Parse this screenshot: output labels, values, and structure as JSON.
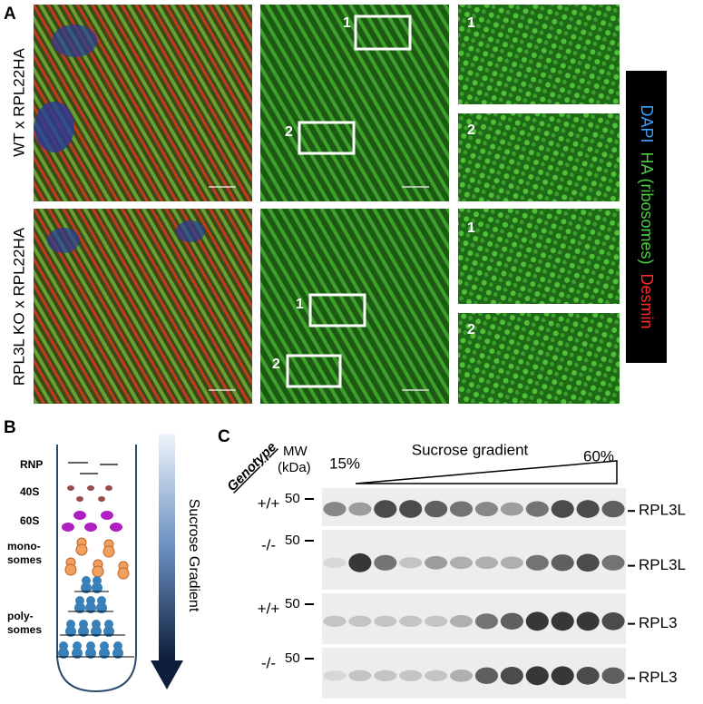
{
  "panel_a": {
    "label": "A",
    "rows": [
      {
        "label": "WT x RPL22HA",
        "box_labels": [
          "1",
          "2"
        ],
        "inset_labels": [
          "1",
          "2"
        ]
      },
      {
        "label": "RPL3L KO x RPL22HA",
        "box_labels": [
          "1",
          "2"
        ],
        "inset_labels": [
          "1",
          "2"
        ]
      }
    ],
    "legend": [
      "DAPI",
      "HA (ribosomes)",
      "Desmin"
    ]
  },
  "panel_b": {
    "label": "B",
    "fractions": [
      [
        "RNP"
      ],
      [
        "40S"
      ],
      [
        "60S"
      ],
      [
        "mono-",
        "somes"
      ],
      [
        "poly-",
        "somes"
      ]
    ],
    "gradient_label": "Sucrose Gradient"
  },
  "panel_c": {
    "label": "C",
    "genotype_header": "Genotype",
    "mw_header": [
      "MW",
      "(kDa)"
    ],
    "low": "15%",
    "gradient_label": "Sucrose gradient",
    "high": "60%",
    "blots": [
      {
        "genotype": "+/+",
        "mw": "50",
        "band": "RPL3L"
      },
      {
        "genotype": "-/-",
        "mw": "50",
        "band": "RPL3L"
      },
      {
        "genotype": "+/+",
        "mw": "50",
        "band": "RPL3"
      },
      {
        "genotype": "-/-",
        "mw": "50",
        "band": "RPL3"
      }
    ]
  }
}
